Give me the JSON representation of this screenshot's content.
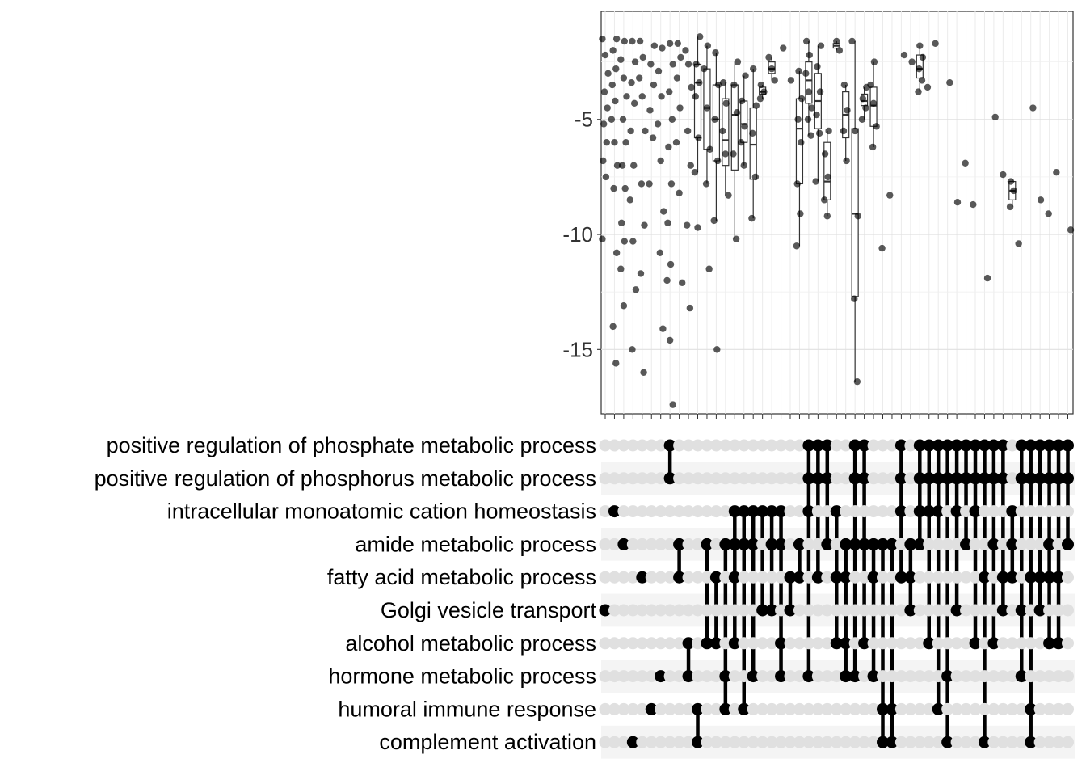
{
  "chart_data": [
    {
      "type": "box",
      "role": "upset-distribution",
      "ylim": [
        -17.8,
        -0.3
      ],
      "yticks": [
        -5,
        -10,
        -15
      ],
      "grid": true,
      "n_columns": 51,
      "points_shown": "jittered points with box overlay",
      "columns": [
        {
          "values": [
            -1.5,
            -2.2,
            -3.0,
            -3.8,
            -4.5,
            -5.2,
            -6.0,
            -6.8,
            -7.5,
            -10.2
          ],
          "box": null
        },
        {
          "values": [
            -1.5,
            -2.0,
            -2.8,
            -3.5,
            -4.2,
            -5.0,
            -6.0,
            -7.0,
            -8.0,
            -10.8,
            -14.0,
            -15.6
          ],
          "box": null
        },
        {
          "values": [
            -1.6,
            -2.4,
            -3.2,
            -4.0,
            -5.0,
            -6.0,
            -7.0,
            -8.0,
            -9.5,
            -10.3,
            -11.5,
            -13.1
          ],
          "box": null
        },
        {
          "values": [
            -1.6,
            -2.5,
            -3.4,
            -4.3,
            -5.5,
            -7.0,
            -8.5,
            -10.3,
            -12.4,
            -15.0
          ],
          "box": null
        },
        {
          "values": [
            -1.6,
            -2.3,
            -3.2,
            -4.0,
            -5.5,
            -7.8,
            -9.6,
            -11.7,
            -16.0
          ],
          "box": null
        },
        {
          "values": [
            -1.8,
            -2.6,
            -3.5,
            -4.6,
            -5.8,
            -7.8
          ],
          "box": null
        },
        {
          "values": [
            -1.9,
            -2.9,
            -4.0,
            -5.2,
            -6.8,
            -9.0,
            -10.8,
            -14.1
          ],
          "box": null
        },
        {
          "values": [
            -1.7,
            -2.6,
            -3.8,
            -5.0,
            -6.2,
            -7.8,
            -9.5,
            -11.3,
            -12.0,
            -14.6,
            -17.4
          ],
          "box": null
        },
        {
          "values": [
            -1.7,
            -2.3,
            -3.2,
            -4.5,
            -6.0,
            -8.2,
            -12.1
          ],
          "box": null
        },
        {
          "values": [
            -2.0,
            -2.6,
            -3.6,
            -5.5,
            -7.0,
            -9.6,
            -13.2
          ],
          "box": null
        },
        {
          "values": [
            -1.4,
            -2.6,
            -3.4,
            -4.0,
            -5.8,
            -7.3,
            -9.7
          ],
          "box": [
            -7.3,
            -5.8,
            -3.4,
            -2.6,
            -1.4
          ]
        },
        {
          "values": [
            -1.8,
            -2.8,
            -4.5,
            -6.3,
            -7.8,
            -11.5
          ],
          "box": [
            -7.8,
            -6.3,
            -4.5,
            -2.8,
            -1.8
          ]
        },
        {
          "values": [
            -2.1,
            -3.5,
            -5.0,
            -6.8,
            -9.4,
            -15.0
          ],
          "box": [
            -9.4,
            -6.8,
            -5.0,
            -3.5,
            -2.1
          ]
        },
        {
          "values": [
            -3.4,
            -4.3,
            -5.5,
            -6.5,
            -8.3
          ],
          "box": [
            -8.3,
            -7.0,
            -5.9,
            -4.1,
            -3.4
          ]
        },
        {
          "values": [
            -2.5,
            -3.5,
            -4.7,
            -6.5,
            -10.2
          ],
          "box": [
            -10.2,
            -7.2,
            -4.8,
            -3.5,
            -2.5
          ]
        },
        {
          "values": [
            -3.1,
            -4.2,
            -5.3,
            -6.0,
            -7.0
          ],
          "box": [
            -7.0,
            -6.0,
            -5.2,
            -4.2,
            -3.1
          ]
        },
        {
          "values": [
            -2.8,
            -4.4,
            -5.6,
            -7.5,
            -9.3
          ],
          "box": [
            -9.3,
            -7.6,
            -6.1,
            -4.5,
            -2.8
          ]
        },
        {
          "values": [
            -3.5,
            -3.8,
            -4.1
          ],
          "box": [
            -4.1,
            -3.9,
            -3.8,
            -3.6,
            -3.5
          ]
        },
        {
          "values": [
            -2.3,
            -2.8,
            -3.3
          ],
          "box": [
            -3.3,
            -3.0,
            -2.8,
            -2.5,
            -2.3
          ]
        },
        {
          "values": [
            -1.9
          ],
          "box": null
        },
        {
          "values": [
            -3.3
          ],
          "box": null
        },
        {
          "values": [
            -2.9,
            -4.1,
            -5.0,
            -6.0,
            -7.8,
            -9.1,
            -10.5
          ],
          "box": [
            -10.5,
            -7.8,
            -5.4,
            -4.1,
            -2.9
          ]
        },
        {
          "values": [
            -1.6,
            -2.2,
            -3.0,
            -3.8,
            -4.5,
            -5.0,
            -5.7
          ],
          "box": [
            -5.7,
            -4.3,
            -3.3,
            -2.5,
            -1.6
          ]
        },
        {
          "values": [
            -1.8,
            -2.7,
            -3.8,
            -4.8,
            -5.6,
            -7.7
          ],
          "box": [
            -7.7,
            -5.4,
            -4.2,
            -3.0,
            -1.8
          ]
        },
        {
          "values": [
            -5.5,
            -6.5,
            -7.5,
            -8.5,
            -9.2
          ],
          "box": [
            -9.2,
            -8.5,
            -7.7,
            -6.0,
            -5.5
          ]
        },
        {
          "values": [
            -1.6,
            -2.0
          ],
          "box": [
            -2.0,
            -1.9,
            -1.8,
            -1.7,
            -1.6
          ]
        },
        {
          "values": [
            -3.5,
            -4.6,
            -5.5,
            -6.8
          ],
          "box": [
            -6.8,
            -5.8,
            -4.8,
            -3.8,
            -3.5
          ]
        },
        {
          "values": [
            -1.6,
            -5.5,
            -9.2,
            -12.8,
            -16.4
          ],
          "box": [
            -16.4,
            -12.7,
            -9.1,
            -5.4,
            -1.6
          ]
        },
        {
          "values": [
            -3.6,
            -4.1,
            -4.5,
            -5.0
          ],
          "box": [
            -5.0,
            -4.4,
            -4.2,
            -3.9,
            -3.6
          ]
        },
        {
          "values": [
            -2.5,
            -3.5,
            -4.3,
            -5.3,
            -6.2
          ],
          "box": [
            -6.2,
            -5.3,
            -4.4,
            -3.6,
            -2.5
          ]
        },
        {
          "values": [
            -10.6
          ],
          "box": null
        },
        {
          "values": [
            -8.3
          ],
          "box": null
        },
        {
          "values": [
            -2.2
          ],
          "box": null
        },
        {
          "values": [
            -2.5
          ],
          "box": null
        },
        {
          "values": [
            -1.8,
            -2.3,
            -2.8,
            -3.3,
            -3.8
          ],
          "box": [
            -3.8,
            -3.2,
            -2.8,
            -2.2,
            -1.8
          ]
        },
        {
          "values": [
            -3.6
          ],
          "box": null
        },
        {
          "values": [
            -1.7
          ],
          "box": null
        },
        {
          "values": [
            -3.4
          ],
          "box": null
        },
        {
          "values": [
            -8.6
          ],
          "box": null
        },
        {
          "values": [
            -6.9
          ],
          "box": null
        },
        {
          "values": [
            -8.7
          ],
          "box": null
        },
        {
          "values": [
            -11.9
          ],
          "box": null
        },
        {
          "values": [
            -4.9
          ],
          "box": null
        },
        {
          "values": [
            -7.4
          ],
          "box": null
        },
        {
          "values": [
            -7.7,
            -8.1,
            -8.8
          ],
          "box": [
            -8.8,
            -8.5,
            -8.1,
            -7.7,
            -7.6
          ]
        },
        {
          "values": [
            -10.4
          ],
          "box": null
        },
        {
          "values": [
            -4.5
          ],
          "box": null
        },
        {
          "values": [
            -8.5
          ],
          "box": null
        },
        {
          "values": [
            -9.1
          ],
          "box": null
        },
        {
          "values": [
            -7.3
          ],
          "box": null
        },
        {
          "values": [
            -9.8
          ],
          "box": null
        }
      ]
    },
    {
      "type": "matrix",
      "role": "upset-intersection-matrix",
      "sets": [
        "positive regulation of phosphate metabolic process",
        "positive regulation of phosphorus metabolic process",
        "intracellular monoatomic cation homeostasis",
        "amide metabolic process",
        "fatty acid metabolic process",
        "Golgi vesicle transport",
        "alcohol metabolic process",
        "hormone metabolic process",
        "humoral immune response",
        "complement activation"
      ],
      "intersections": [
        [
          5
        ],
        [
          2
        ],
        [
          3
        ],
        [
          9
        ],
        [
          4
        ],
        [
          8
        ],
        [
          7
        ],
        [
          0,
          1
        ],
        [
          4,
          3
        ],
        [
          7,
          6
        ],
        [
          9,
          8
        ],
        [
          6,
          3
        ],
        [
          4,
          6
        ],
        [
          3,
          8,
          7
        ],
        [
          4,
          6,
          2,
          3
        ],
        [
          8,
          3,
          2
        ],
        [
          7,
          3,
          2
        ],
        [
          2,
          5
        ],
        [
          5,
          2,
          3
        ],
        [
          6,
          3,
          2,
          7
        ],
        [
          4,
          5
        ],
        [
          4,
          3
        ],
        [
          7,
          2,
          0,
          1
        ],
        [
          4,
          0,
          1
        ],
        [
          3,
          0,
          1
        ],
        [
          2,
          4,
          6
        ],
        [
          4,
          3,
          7,
          6
        ],
        [
          3,
          0,
          1,
          7
        ],
        [
          3,
          6,
          0,
          1
        ],
        [
          4,
          3,
          7
        ],
        [
          9,
          3,
          8
        ],
        [
          9,
          8,
          3
        ],
        [
          4,
          0,
          1,
          2
        ],
        [
          5,
          3,
          4
        ],
        [
          0,
          1,
          3,
          2
        ],
        [
          6,
          2,
          0,
          1
        ],
        [
          8,
          0,
          1,
          2
        ],
        [
          7,
          9,
          0,
          1
        ],
        [
          5,
          2,
          0,
          1
        ],
        [
          3,
          0,
          1
        ],
        [
          0,
          1,
          2,
          6
        ],
        [
          9,
          4,
          0,
          1
        ],
        [
          6,
          0,
          1,
          3
        ],
        [
          4,
          5,
          0,
          1
        ],
        [
          4,
          2,
          3
        ],
        [
          7,
          5,
          0,
          1
        ],
        [
          9,
          4,
          0,
          1,
          8
        ],
        [
          0,
          1,
          4,
          5
        ],
        [
          6,
          3,
          0,
          1,
          4
        ],
        [
          4,
          0,
          1,
          6
        ],
        [
          0,
          1,
          3
        ]
      ]
    }
  ]
}
